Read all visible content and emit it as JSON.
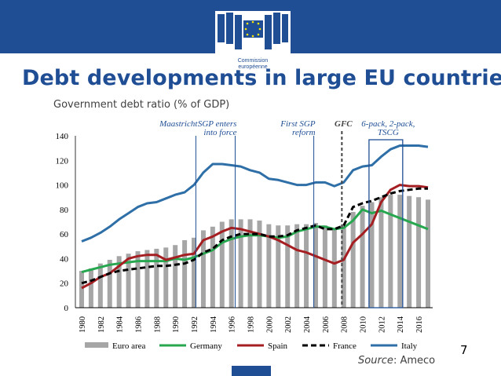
{
  "header": {
    "logo_line1": "Commission",
    "logo_line2": "européenne"
  },
  "title": "Debt developments in large EU countries",
  "subtitle": "Government debt ratio (% of GDP)",
  "page_number": "7",
  "source_label": "Source",
  "source_value": ": Ameco",
  "colors": {
    "brand_blue": "#1f4e95",
    "euro_area": "#a6a6a6",
    "germany": "#27a74f",
    "spain": "#a41e22",
    "france": "#000000",
    "italy": "#2f6fa7",
    "annotation": "#1f4e95"
  },
  "chart_data": {
    "type": "bar",
    "x": [
      1980,
      1981,
      1982,
      1983,
      1984,
      1985,
      1986,
      1987,
      1988,
      1989,
      1990,
      1991,
      1992,
      1993,
      1994,
      1995,
      1996,
      1997,
      1998,
      1999,
      2000,
      2001,
      2002,
      2003,
      2004,
      2005,
      2006,
      2007,
      2008,
      2009,
      2010,
      2011,
      2012,
      2013,
      2014,
      2015,
      2016,
      2017
    ],
    "x_tick_labels": [
      "1980",
      "1982",
      "1984",
      "1986",
      "1988",
      "1990",
      "1992",
      "1994",
      "1996",
      "1998",
      "2000",
      "2002",
      "2004",
      "2006",
      "2008",
      "2010",
      "2012",
      "2014",
      "2016"
    ],
    "ylim": [
      0,
      140
    ],
    "y_ticks": [
      0,
      20,
      40,
      60,
      80,
      100,
      120,
      140
    ],
    "series": [
      {
        "name": "Euro area",
        "kind": "bar",
        "values": [
          30,
          32,
          36,
          39,
          42,
          44,
          46,
          47,
          48,
          49,
          51,
          55,
          57,
          63,
          66,
          70,
          72,
          72,
          72,
          71,
          68,
          67,
          67,
          68,
          68,
          69,
          67,
          65,
          68,
          78,
          83,
          86,
          90,
          92,
          92,
          91,
          90,
          88
        ]
      },
      {
        "name": "Germany",
        "kind": "line",
        "values": [
          29,
          31,
          33,
          35,
          36,
          37,
          38,
          38,
          38,
          38,
          40,
          39,
          41,
          44,
          47,
          53,
          56,
          58,
          59,
          59,
          58,
          57,
          58,
          62,
          64,
          66,
          66,
          64,
          65,
          71,
          80,
          77,
          79,
          76,
          73,
          70,
          67,
          64
        ]
      },
      {
        "name": "Spain",
        "kind": "line",
        "values": [
          16,
          20,
          25,
          28,
          34,
          40,
          42,
          43,
          43,
          39,
          41,
          43,
          44,
          55,
          58,
          62,
          65,
          64,
          62,
          60,
          58,
          55,
          51,
          47,
          45,
          42,
          39,
          36,
          39,
          53,
          60,
          68,
          86,
          96,
          100,
          99,
          99,
          98
        ]
      },
      {
        "name": "France",
        "kind": "dashed-line",
        "values": [
          20,
          22,
          25,
          28,
          30,
          31,
          32,
          33,
          34,
          34,
          35,
          36,
          39,
          45,
          48,
          55,
          58,
          60,
          60,
          60,
          58,
          58,
          59,
          63,
          65,
          67,
          64,
          64,
          67,
          82,
          85,
          87,
          90,
          93,
          95,
          96,
          97,
          97
        ]
      },
      {
        "name": "Italy",
        "kind": "line",
        "values": [
          54,
          57,
          61,
          66,
          72,
          77,
          82,
          85,
          86,
          89,
          92,
          94,
          100,
          110,
          117,
          117,
          116,
          115,
          112,
          110,
          105,
          104,
          102,
          100,
          100,
          102,
          102,
          99,
          102,
          112,
          115,
          116,
          123,
          129,
          132,
          132,
          132,
          131
        ]
      }
    ],
    "annotations": [
      {
        "text": [
          "Maastricht"
        ],
        "year": 1992.2
      },
      {
        "text": [
          "SGP enters",
          "into force"
        ],
        "year": 1996.4
      },
      {
        "text": [
          "First SGP",
          "reform"
        ],
        "year": 2004.8
      },
      {
        "text": [
          "GFC"
        ],
        "year": 2007.8,
        "dashed": true
      },
      {
        "text": [
          "6-pack, 2-pack,",
          "TSCG"
        ],
        "range": [
          2010.7,
          2014.3
        ]
      }
    ],
    "legend": [
      "Euro area",
      "Germany",
      "Spain",
      "France",
      "Italy"
    ],
    "legend_position": "bottom",
    "grid": false
  }
}
